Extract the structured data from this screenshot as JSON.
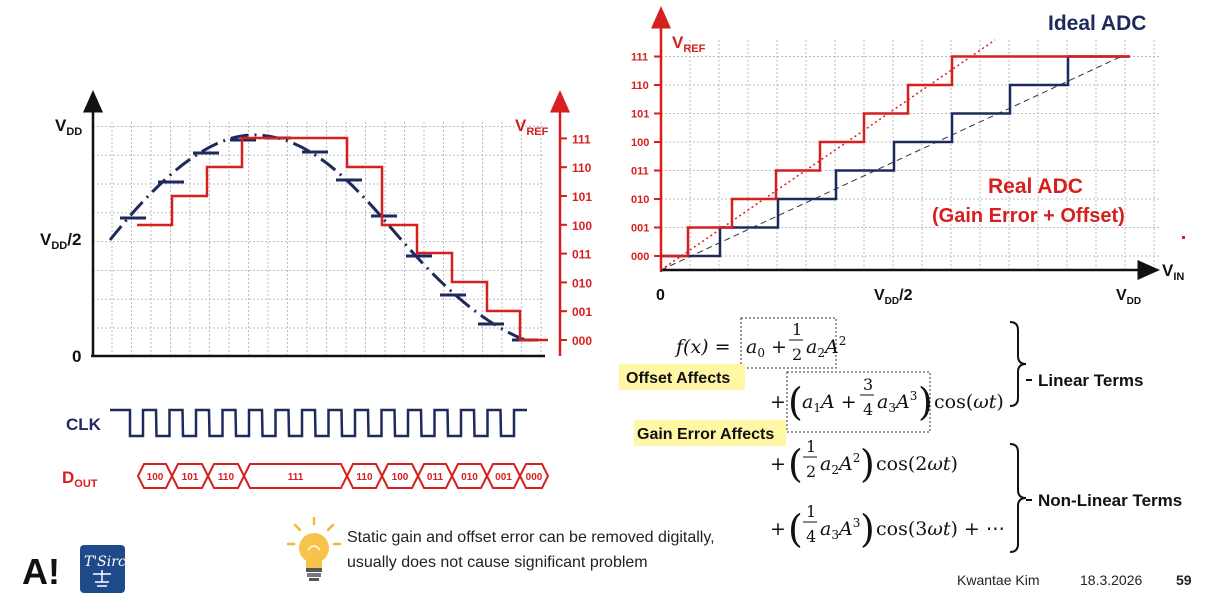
{
  "colors": {
    "navy": "#1f2a5c",
    "red": "#d61f1f",
    "grid": "#bdbdbd",
    "highlight": "#fff7a6"
  },
  "left_plot": {
    "y_labels": {
      "vdd": "V",
      "vdd_sub": "DD",
      "half": "V",
      "half_sub": "DD",
      "half_suffix": "/2",
      "zero": "0"
    },
    "vref": {
      "main": "V",
      "sub": "REF"
    },
    "codes": [
      "000",
      "001",
      "010",
      "011",
      "100",
      "101",
      "110",
      "111"
    ]
  },
  "clk_label": "CLK",
  "dout": {
    "main": "D",
    "sub": "OUT",
    "codes": [
      "100",
      "101",
      "110",
      "111",
      "110",
      "100",
      "011",
      "010",
      "001",
      "000"
    ]
  },
  "right_plot": {
    "title_ideal": "Ideal ADC",
    "title_real_1": "Real ADC",
    "title_real_2": "(Gain Error + Offset)",
    "vref": {
      "main": "V",
      "sub": "REF"
    },
    "vin": {
      "main": "V",
      "sub": "IN"
    },
    "x_labels": {
      "zero": "0",
      "half": "V",
      "half_sub": "DD",
      "half_suffix": "/2",
      "vdd": "V",
      "vdd_sub": "DD"
    },
    "codes": [
      "000",
      "001",
      "010",
      "011",
      "100",
      "101",
      "110",
      "111"
    ]
  },
  "equation": {
    "lhs": "f(x) = ",
    "term_dc_a0": "a",
    "linear_label": "Linear Terms",
    "nonlinear_label": "Non-Linear Terms",
    "offset_label": "Offset Affects",
    "gain_label": "Gain Error Affects"
  },
  "note": {
    "line1": "Static gain and offset error can be removed digitally,",
    "line2": "usually does not cause significant problem"
  },
  "footer": {
    "author": "Kwantae Kim",
    "date": "18.3.2026",
    "page": "59",
    "logo_a": "A!",
    "logo_tsirc": "T'Sirc"
  }
}
